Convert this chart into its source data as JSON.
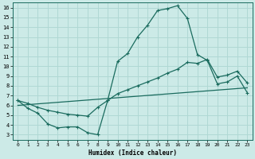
{
  "xlabel": "Humidex (Indice chaleur)",
  "bg_color": "#cceae7",
  "grid_color": "#b0d8d4",
  "line_color": "#1a6b5e",
  "xlim": [
    -0.5,
    23.5
  ],
  "ylim": [
    2.5,
    16.5
  ],
  "xticks": [
    0,
    1,
    2,
    3,
    4,
    5,
    6,
    7,
    8,
    9,
    10,
    11,
    12,
    13,
    14,
    15,
    16,
    17,
    18,
    19,
    20,
    21,
    22,
    23
  ],
  "yticks": [
    3,
    4,
    5,
    6,
    7,
    8,
    9,
    10,
    11,
    12,
    13,
    14,
    15,
    16
  ],
  "line1_x": [
    0,
    1,
    2,
    3,
    4,
    5,
    6,
    7,
    8,
    9,
    10,
    11,
    12,
    13,
    14,
    15,
    16,
    17,
    18,
    19,
    20,
    21,
    22,
    23
  ],
  "line1_y": [
    6.5,
    5.7,
    5.2,
    4.1,
    3.7,
    3.8,
    3.8,
    3.2,
    3.0,
    6.5,
    10.5,
    11.3,
    13.0,
    14.2,
    15.7,
    15.9,
    16.2,
    14.9,
    11.2,
    10.6,
    8.2,
    8.4,
    9.0,
    7.3
  ],
  "line2_x": [
    0,
    1,
    2,
    3,
    4,
    5,
    6,
    7,
    8,
    9,
    10,
    11,
    12,
    13,
    14,
    15,
    16,
    17,
    18,
    19,
    20,
    21,
    22,
    23
  ],
  "line2_y": [
    6.5,
    6.2,
    5.8,
    5.5,
    5.3,
    5.1,
    5.0,
    4.9,
    5.8,
    6.5,
    7.2,
    7.6,
    8.0,
    8.4,
    8.8,
    9.3,
    9.7,
    10.4,
    10.3,
    10.7,
    8.9,
    9.1,
    9.5,
    8.3
  ],
  "line3_x": [
    0,
    23
  ],
  "line3_y": [
    6.0,
    7.8
  ]
}
